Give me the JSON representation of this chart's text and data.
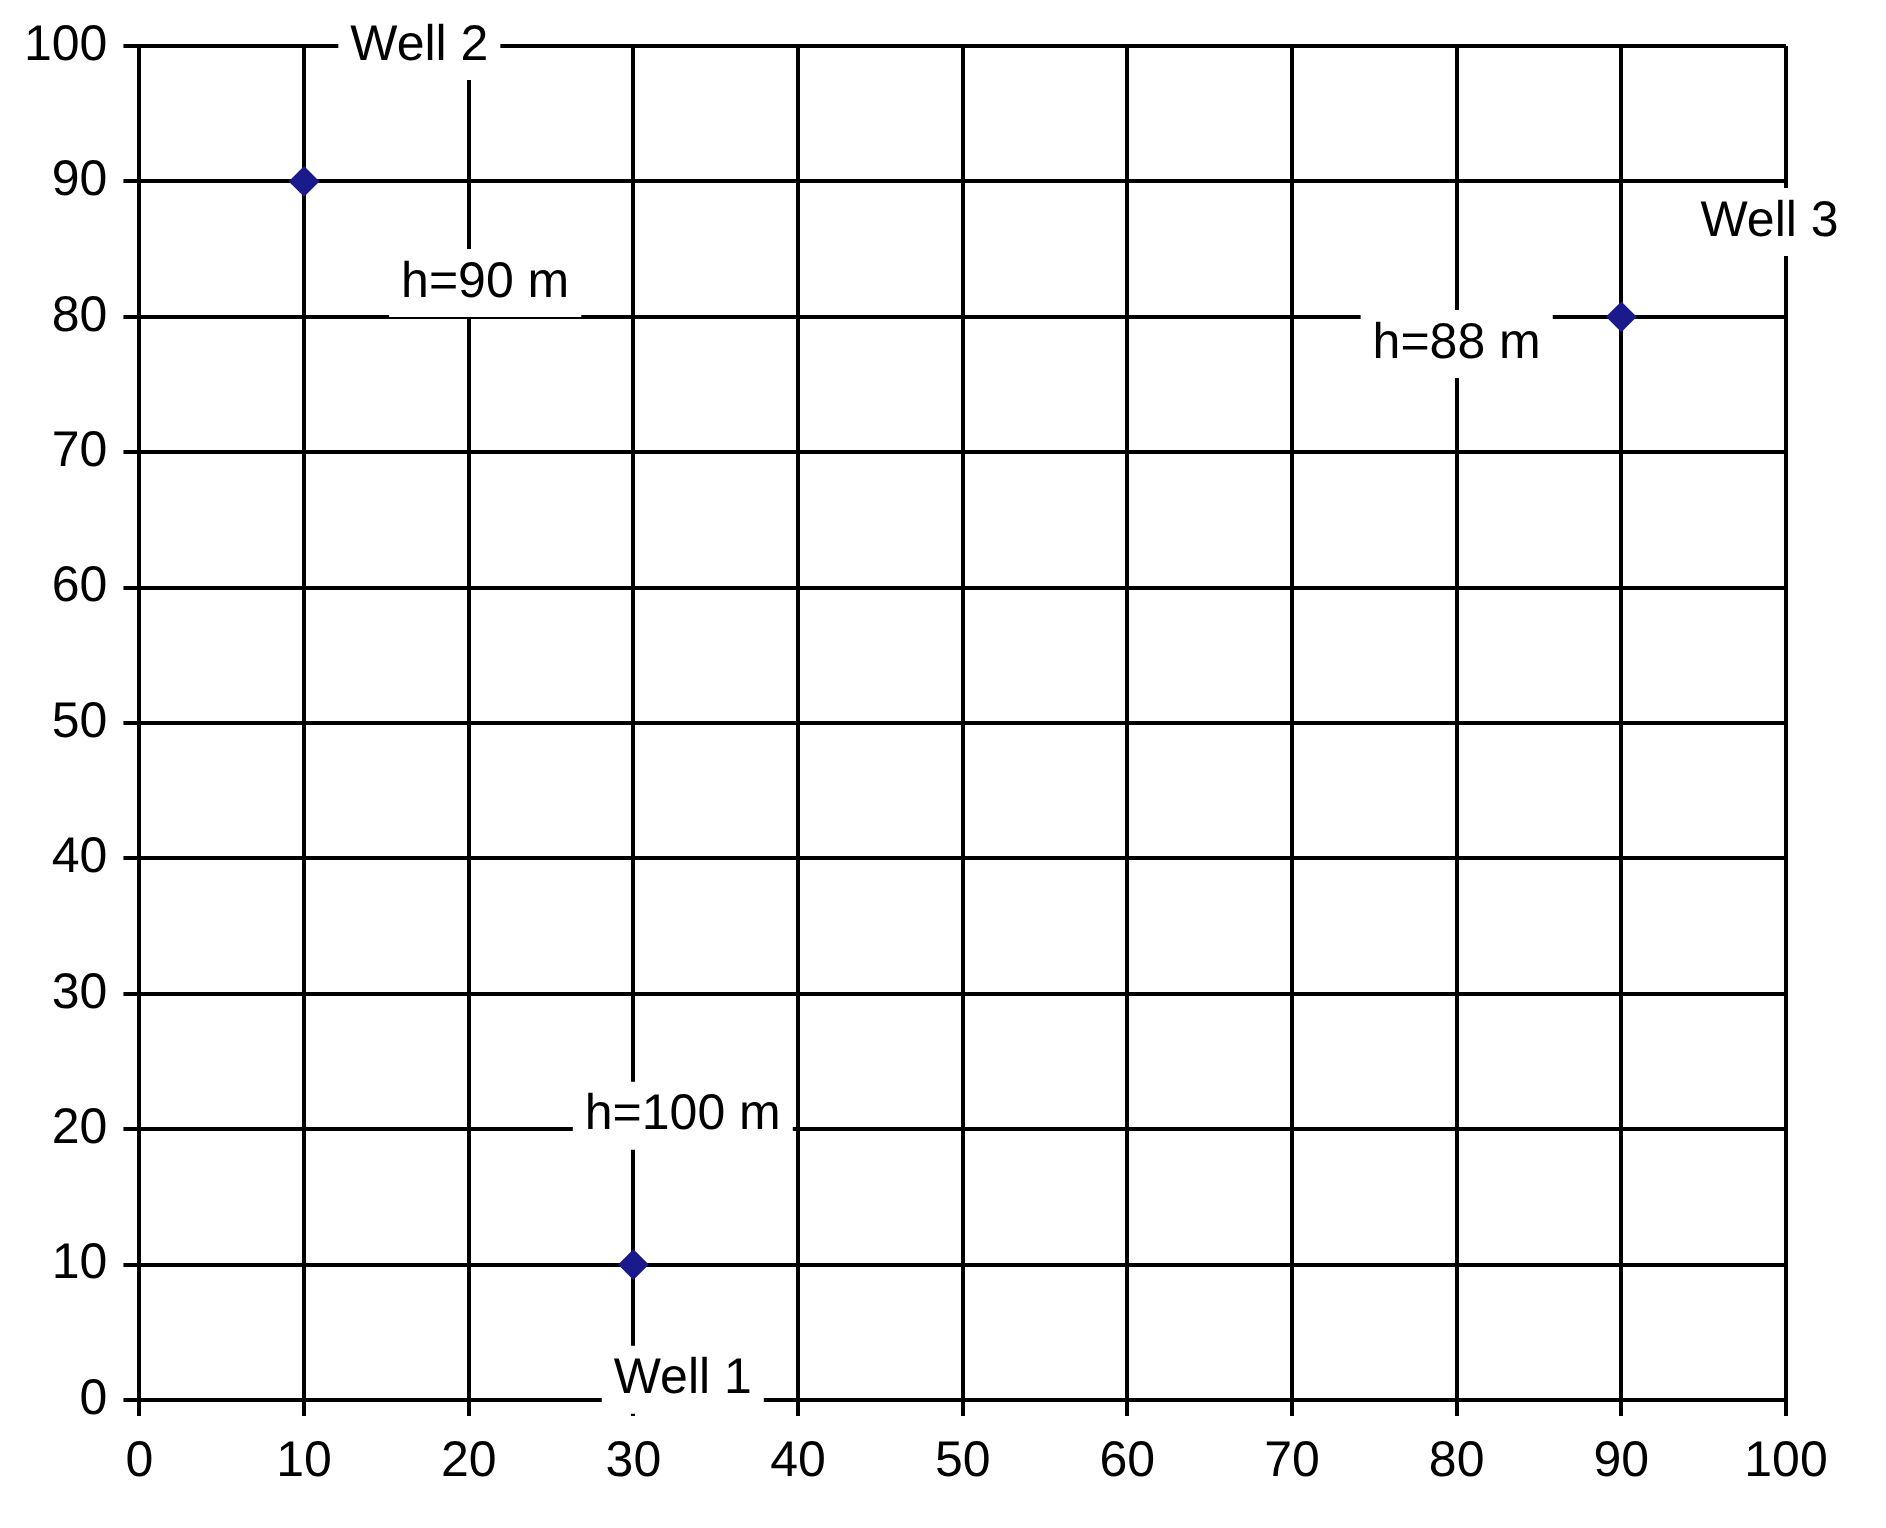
{
  "chart_data": {
    "type": "scatter",
    "series": [
      {
        "color": "#1a1a8c",
        "x": [
          30,
          10,
          90
        ],
        "values": [
          10,
          90,
          80
        ]
      }
    ],
    "xlim": [
      0,
      100
    ],
    "xticks": [
      0,
      10,
      20,
      30,
      40,
      50,
      60,
      70,
      80,
      90,
      100
    ],
    "ylim": [
      0,
      100
    ],
    "yticks": [
      0,
      10,
      20,
      30,
      40,
      50,
      60,
      70,
      80,
      90,
      100
    ],
    "grid": true,
    "legend": false,
    "marker": "diamond",
    "annotations": [
      {
        "text": "Well 1",
        "x": 30,
        "y": 10
      },
      {
        "text": "h=100 m",
        "x": 30,
        "y": 10
      },
      {
        "text": "Well 2",
        "x": 10,
        "y": 90
      },
      {
        "text": "h=90 m",
        "x": 10,
        "y": 90
      },
      {
        "text": "Well 3",
        "x": 90,
        "y": 80
      },
      {
        "text": "h=88 m",
        "x": 90,
        "y": 80
      }
    ]
  }
}
